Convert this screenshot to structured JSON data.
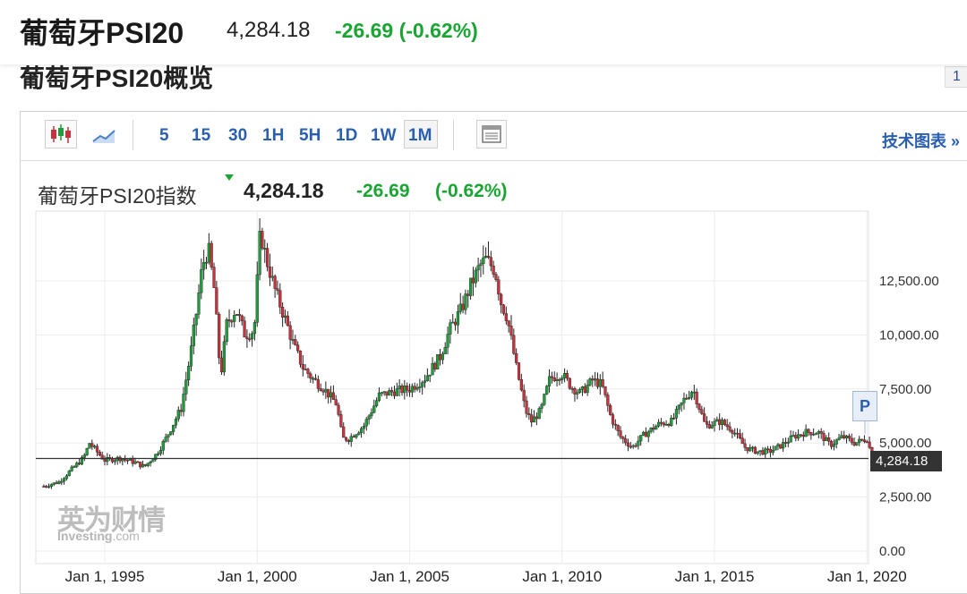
{
  "header": {
    "title": "葡萄牙PSI20",
    "price": "4,284.18",
    "change": "-26.69 (-0.62%)"
  },
  "section": {
    "title": "葡萄牙PSI20概览",
    "side_box": "1"
  },
  "toolbar": {
    "intervals": [
      "5",
      "15",
      "30",
      "1H",
      "5H",
      "1D",
      "1W",
      "1M"
    ],
    "selected_interval": "1M",
    "tech_link": "技术图表 »"
  },
  "chart_header": {
    "name": "葡萄牙PSI20指数",
    "price": "4,284.18",
    "change": "-26.69",
    "pct": "(-0.62%)"
  },
  "watermark": {
    "line1": "英为财情",
    "brand": "Investing",
    "suffix": ".com"
  },
  "p_marker": "P",
  "colors": {
    "up": "#1e9e3a",
    "down": "#c8323c",
    "change": "#1aa533"
  },
  "chart_data": {
    "type": "candlestick",
    "ylim": [
      0,
      15500
    ],
    "yticks": [
      0,
      2500,
      5000,
      7500,
      10000,
      12500
    ],
    "ytick_labels": [
      "0.00",
      "2,500.00",
      "5,000.00",
      "7,500.00",
      "10,000.00",
      "12,500.00"
    ],
    "xticks": [
      1995,
      2000,
      2005,
      2010,
      2015,
      2020
    ],
    "xtick_labels": [
      "Jan 1, 1995",
      "Jan 1, 2000",
      "Jan 1, 2005",
      "Jan 1, 2010",
      "Jan 1, 2015",
      "Jan 1, 2020"
    ],
    "last_value": 4284.18,
    "last_label": "4,284.18",
    "close_series": [
      [
        1993.0,
        3000
      ],
      [
        1993.5,
        3200
      ],
      [
        1994.0,
        3900
      ],
      [
        1994.3,
        4300
      ],
      [
        1994.5,
        5000
      ],
      [
        1994.8,
        4500
      ],
      [
        1995.0,
        4200
      ],
      [
        1995.5,
        4300
      ],
      [
        1996.0,
        4100
      ],
      [
        1996.3,
        3900
      ],
      [
        1996.7,
        4500
      ],
      [
        1997.0,
        5200
      ],
      [
        1997.5,
        6600
      ],
      [
        1997.8,
        9000
      ],
      [
        1998.0,
        11000
      ],
      [
        1998.2,
        13200
      ],
      [
        1998.4,
        14000
      ],
      [
        1998.6,
        12000
      ],
      [
        1998.8,
        8000
      ],
      [
        1999.0,
        10500
      ],
      [
        1999.3,
        11200
      ],
      [
        1999.6,
        10000
      ],
      [
        1999.9,
        10200
      ],
      [
        2000.1,
        14800
      ],
      [
        2000.3,
        13500
      ],
      [
        2000.6,
        12000
      ],
      [
        2000.9,
        10800
      ],
      [
        2001.2,
        9500
      ],
      [
        2001.5,
        8500
      ],
      [
        2001.8,
        8000
      ],
      [
        2002.2,
        7500
      ],
      [
        2002.6,
        6800
      ],
      [
        2002.8,
        5200
      ],
      [
        2003.0,
        5200
      ],
      [
        2003.5,
        5800
      ],
      [
        2004.0,
        7200
      ],
      [
        2004.5,
        7400
      ],
      [
        2005.0,
        7500
      ],
      [
        2005.5,
        8000
      ],
      [
        2006.0,
        9000
      ],
      [
        2006.3,
        10200
      ],
      [
        2006.7,
        11200
      ],
      [
        2007.0,
        12300
      ],
      [
        2007.3,
        13200
      ],
      [
        2007.5,
        13500
      ],
      [
        2007.8,
        13000
      ],
      [
        2008.0,
        11500
      ],
      [
        2008.2,
        10800
      ],
      [
        2008.5,
        8500
      ],
      [
        2008.8,
        6500
      ],
      [
        2009.0,
        6000
      ],
      [
        2009.3,
        6500
      ],
      [
        2009.6,
        8000
      ],
      [
        2010.0,
        8200
      ],
      [
        2010.3,
        7600
      ],
      [
        2010.6,
        7300
      ],
      [
        2011.0,
        7900
      ],
      [
        2011.3,
        7700
      ],
      [
        2011.6,
        6200
      ],
      [
        2011.9,
        5300
      ],
      [
        2012.3,
        4800
      ],
      [
        2012.7,
        5400
      ],
      [
        2013.2,
        5900
      ],
      [
        2013.6,
        6000
      ],
      [
        2014.0,
        7000
      ],
      [
        2014.3,
        7500
      ],
      [
        2014.7,
        5800
      ],
      [
        2015.2,
        6000
      ],
      [
        2015.6,
        5600
      ],
      [
        2016.0,
        4800
      ],
      [
        2016.4,
        4600
      ],
      [
        2016.8,
        4600
      ],
      [
        2017.2,
        4900
      ],
      [
        2017.6,
        5300
      ],
      [
        2018.0,
        5500
      ],
      [
        2018.4,
        5500
      ],
      [
        2018.8,
        4900
      ],
      [
        2019.2,
        5300
      ],
      [
        2019.6,
        5000
      ],
      [
        2020.0,
        5200
      ],
      [
        2020.2,
        4200
      ],
      [
        2020.4,
        4284.18
      ]
    ]
  }
}
